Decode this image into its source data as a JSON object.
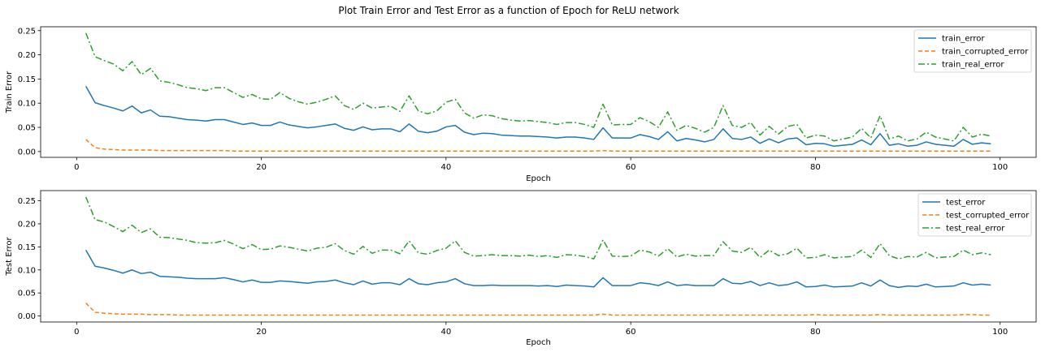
{
  "figure": {
    "suptitle": "Plot Train Error and Test Error as a function of Epoch for ReLU network"
  },
  "chart_data": [
    {
      "type": "line",
      "title": "",
      "xlabel": "Epoch",
      "ylabel": "Train Error",
      "xlim": [
        -3.9,
        103.9
      ],
      "ylim": [
        -0.012,
        0.258
      ],
      "xticks": [
        0,
        20,
        40,
        60,
        80,
        100
      ],
      "yticks": [
        0.0,
        0.05,
        0.1,
        0.15,
        0.2,
        0.25
      ],
      "ytick_labels": [
        "0.00",
        "0.05",
        "0.10",
        "0.15",
        "0.20",
        "0.25"
      ],
      "legend_position": "top-right",
      "grid": false,
      "x": [
        1,
        2,
        3,
        4,
        5,
        6,
        7,
        8,
        9,
        10,
        11,
        12,
        13,
        14,
        15,
        16,
        17,
        18,
        19,
        20,
        21,
        22,
        23,
        24,
        25,
        26,
        27,
        28,
        29,
        30,
        31,
        32,
        33,
        34,
        35,
        36,
        37,
        38,
        39,
        40,
        41,
        42,
        43,
        44,
        45,
        46,
        47,
        48,
        49,
        50,
        51,
        52,
        53,
        54,
        55,
        56,
        57,
        58,
        59,
        60,
        61,
        62,
        63,
        64,
        65,
        66,
        67,
        68,
        69,
        70,
        71,
        72,
        73,
        74,
        75,
        76,
        77,
        78,
        79,
        80,
        81,
        82,
        83,
        84,
        85,
        86,
        87,
        88,
        89,
        90,
        91,
        92,
        93,
        94,
        95,
        96,
        97,
        98,
        99
      ],
      "series": [
        {
          "name": "train_error",
          "color": "#1f77b4",
          "style": "solid",
          "values": [
            0.135,
            0.101,
            0.095,
            0.09,
            0.084,
            0.094,
            0.08,
            0.086,
            0.073,
            0.072,
            0.069,
            0.066,
            0.065,
            0.063,
            0.066,
            0.066,
            0.061,
            0.056,
            0.059,
            0.054,
            0.054,
            0.061,
            0.055,
            0.052,
            0.049,
            0.051,
            0.054,
            0.057,
            0.048,
            0.044,
            0.051,
            0.045,
            0.047,
            0.047,
            0.041,
            0.057,
            0.042,
            0.039,
            0.042,
            0.051,
            0.054,
            0.04,
            0.035,
            0.038,
            0.037,
            0.034,
            0.033,
            0.032,
            0.032,
            0.031,
            0.03,
            0.028,
            0.03,
            0.03,
            0.028,
            0.025,
            0.049,
            0.028,
            0.028,
            0.028,
            0.035,
            0.031,
            0.025,
            0.041,
            0.022,
            0.027,
            0.024,
            0.02,
            0.025,
            0.047,
            0.027,
            0.025,
            0.03,
            0.017,
            0.026,
            0.018,
            0.026,
            0.028,
            0.014,
            0.017,
            0.016,
            0.011,
            0.013,
            0.015,
            0.024,
            0.014,
            0.037,
            0.013,
            0.016,
            0.011,
            0.013,
            0.02,
            0.015,
            0.013,
            0.011,
            0.025,
            0.015,
            0.018,
            0.016
          ]
        },
        {
          "name": "train_corrupted_error",
          "color": "#ff7f0e",
          "style": "dashed",
          "values": [
            0.025,
            0.008,
            0.005,
            0.004,
            0.003,
            0.003,
            0.003,
            0.003,
            0.002,
            0.002,
            0.002,
            0.002,
            0.002,
            0.002,
            0.002,
            0.002,
            0.001,
            0.001,
            0.001,
            0.001,
            0.001,
            0.001,
            0.001,
            0.001,
            0.001,
            0.001,
            0.001,
            0.001,
            0.001,
            0.001,
            0.001,
            0.001,
            0.001,
            0.001,
            0.001,
            0.001,
            0.001,
            0.001,
            0.001,
            0.001,
            0.001,
            0.001,
            0.001,
            0.001,
            0.001,
            0.001,
            0.001,
            0.001,
            0.001,
            0.001,
            0.001,
            0.001,
            0.001,
            0.001,
            0.001,
            0.001,
            0.002,
            0.001,
            0.001,
            0.001,
            0.001,
            0.001,
            0.001,
            0.001,
            0.001,
            0.001,
            0.001,
            0.001,
            0.001,
            0.001,
            0.001,
            0.001,
            0.001,
            0.001,
            0.001,
            0.001,
            0.001,
            0.001,
            0.001,
            0.001,
            0.001,
            0.001,
            0.001,
            0.001,
            0.001,
            0.001,
            0.001,
            0.001,
            0.001,
            0.001,
            0.001,
            0.001,
            0.001,
            0.001,
            0.001,
            0.001,
            0.001,
            0.001,
            0.001
          ]
        },
        {
          "name": "train_real_error",
          "color": "#2ca02c",
          "style": "dashdot",
          "values": [
            0.245,
            0.196,
            0.188,
            0.181,
            0.167,
            0.186,
            0.159,
            0.172,
            0.146,
            0.143,
            0.138,
            0.132,
            0.13,
            0.126,
            0.132,
            0.132,
            0.122,
            0.112,
            0.118,
            0.109,
            0.108,
            0.122,
            0.11,
            0.103,
            0.098,
            0.102,
            0.108,
            0.115,
            0.095,
            0.087,
            0.1,
            0.09,
            0.092,
            0.094,
            0.083,
            0.115,
            0.084,
            0.078,
            0.084,
            0.102,
            0.108,
            0.08,
            0.069,
            0.076,
            0.074,
            0.068,
            0.065,
            0.063,
            0.064,
            0.062,
            0.06,
            0.056,
            0.06,
            0.06,
            0.056,
            0.05,
            0.098,
            0.055,
            0.056,
            0.056,
            0.07,
            0.062,
            0.05,
            0.082,
            0.044,
            0.054,
            0.048,
            0.04,
            0.05,
            0.095,
            0.054,
            0.05,
            0.06,
            0.034,
            0.052,
            0.036,
            0.052,
            0.056,
            0.028,
            0.034,
            0.032,
            0.022,
            0.026,
            0.03,
            0.048,
            0.028,
            0.074,
            0.026,
            0.032,
            0.022,
            0.026,
            0.04,
            0.03,
            0.026,
            0.022,
            0.05,
            0.03,
            0.036,
            0.032
          ]
        }
      ]
    },
    {
      "type": "line",
      "title": "",
      "xlabel": "Epoch",
      "ylabel": "Test Error",
      "xlim": [
        -3.9,
        103.9
      ],
      "ylim": [
        -0.013,
        0.272
      ],
      "xticks": [
        0,
        20,
        40,
        60,
        80,
        100
      ],
      "yticks": [
        0.0,
        0.05,
        0.1,
        0.15,
        0.2,
        0.25
      ],
      "ytick_labels": [
        "0.00",
        "0.05",
        "0.10",
        "0.15",
        "0.20",
        "0.25"
      ],
      "legend_position": "top-right",
      "grid": false,
      "x": [
        1,
        2,
        3,
        4,
        5,
        6,
        7,
        8,
        9,
        10,
        11,
        12,
        13,
        14,
        15,
        16,
        17,
        18,
        19,
        20,
        21,
        22,
        23,
        24,
        25,
        26,
        27,
        28,
        29,
        30,
        31,
        32,
        33,
        34,
        35,
        36,
        37,
        38,
        39,
        40,
        41,
        42,
        43,
        44,
        45,
        46,
        47,
        48,
        49,
        50,
        51,
        52,
        53,
        54,
        55,
        56,
        57,
        58,
        59,
        60,
        61,
        62,
        63,
        64,
        65,
        66,
        67,
        68,
        69,
        70,
        71,
        72,
        73,
        74,
        75,
        76,
        77,
        78,
        79,
        80,
        81,
        82,
        83,
        84,
        85,
        86,
        87,
        88,
        89,
        90,
        91,
        92,
        93,
        94,
        95,
        96,
        97,
        98,
        99
      ],
      "series": [
        {
          "name": "test_error",
          "color": "#1f77b4",
          "style": "solid",
          "values": [
            0.143,
            0.108,
            0.104,
            0.099,
            0.093,
            0.1,
            0.092,
            0.095,
            0.086,
            0.085,
            0.084,
            0.082,
            0.081,
            0.081,
            0.081,
            0.083,
            0.079,
            0.074,
            0.078,
            0.073,
            0.073,
            0.076,
            0.075,
            0.073,
            0.071,
            0.074,
            0.075,
            0.078,
            0.072,
            0.068,
            0.076,
            0.069,
            0.072,
            0.072,
            0.068,
            0.081,
            0.07,
            0.068,
            0.072,
            0.074,
            0.081,
            0.07,
            0.066,
            0.066,
            0.067,
            0.066,
            0.066,
            0.066,
            0.066,
            0.065,
            0.066,
            0.064,
            0.067,
            0.066,
            0.065,
            0.063,
            0.083,
            0.066,
            0.066,
            0.066,
            0.072,
            0.07,
            0.066,
            0.074,
            0.066,
            0.068,
            0.066,
            0.066,
            0.066,
            0.081,
            0.071,
            0.07,
            0.075,
            0.066,
            0.072,
            0.066,
            0.068,
            0.074,
            0.063,
            0.064,
            0.067,
            0.063,
            0.064,
            0.065,
            0.072,
            0.065,
            0.078,
            0.066,
            0.062,
            0.065,
            0.064,
            0.069,
            0.063,
            0.064,
            0.065,
            0.072,
            0.067,
            0.069,
            0.067
          ]
        },
        {
          "name": "test_corrupted_error",
          "color": "#ff7f0e",
          "style": "dashed",
          "values": [
            0.028,
            0.008,
            0.006,
            0.005,
            0.004,
            0.004,
            0.004,
            0.003,
            0.003,
            0.003,
            0.002,
            0.002,
            0.002,
            0.002,
            0.002,
            0.002,
            0.002,
            0.002,
            0.002,
            0.002,
            0.002,
            0.002,
            0.002,
            0.002,
            0.002,
            0.002,
            0.002,
            0.002,
            0.002,
            0.002,
            0.002,
            0.002,
            0.002,
            0.002,
            0.002,
            0.002,
            0.002,
            0.002,
            0.002,
            0.002,
            0.002,
            0.002,
            0.002,
            0.002,
            0.002,
            0.002,
            0.002,
            0.002,
            0.002,
            0.002,
            0.002,
            0.002,
            0.002,
            0.002,
            0.002,
            0.002,
            0.004,
            0.002,
            0.002,
            0.002,
            0.002,
            0.002,
            0.002,
            0.002,
            0.002,
            0.002,
            0.002,
            0.002,
            0.002,
            0.002,
            0.002,
            0.002,
            0.002,
            0.002,
            0.002,
            0.002,
            0.002,
            0.002,
            0.002,
            0.003,
            0.002,
            0.002,
            0.002,
            0.002,
            0.002,
            0.002,
            0.003,
            0.002,
            0.002,
            0.002,
            0.002,
            0.002,
            0.002,
            0.002,
            0.002,
            0.003,
            0.003,
            0.002,
            0.002
          ]
        },
        {
          "name": "test_real_error",
          "color": "#2ca02c",
          "style": "dashdot",
          "values": [
            0.258,
            0.209,
            0.204,
            0.194,
            0.183,
            0.197,
            0.181,
            0.189,
            0.171,
            0.17,
            0.167,
            0.164,
            0.159,
            0.158,
            0.159,
            0.164,
            0.156,
            0.146,
            0.155,
            0.144,
            0.145,
            0.152,
            0.149,
            0.145,
            0.141,
            0.147,
            0.149,
            0.157,
            0.142,
            0.134,
            0.151,
            0.136,
            0.143,
            0.143,
            0.135,
            0.163,
            0.137,
            0.134,
            0.142,
            0.147,
            0.163,
            0.138,
            0.13,
            0.131,
            0.133,
            0.131,
            0.131,
            0.13,
            0.132,
            0.129,
            0.131,
            0.127,
            0.133,
            0.132,
            0.129,
            0.124,
            0.165,
            0.13,
            0.129,
            0.13,
            0.143,
            0.139,
            0.13,
            0.146,
            0.128,
            0.134,
            0.13,
            0.131,
            0.131,
            0.161,
            0.141,
            0.138,
            0.149,
            0.127,
            0.143,
            0.131,
            0.135,
            0.147,
            0.126,
            0.127,
            0.133,
            0.126,
            0.128,
            0.129,
            0.143,
            0.127,
            0.157,
            0.131,
            0.124,
            0.129,
            0.128,
            0.138,
            0.126,
            0.128,
            0.129,
            0.143,
            0.133,
            0.137,
            0.133
          ]
        }
      ]
    }
  ]
}
